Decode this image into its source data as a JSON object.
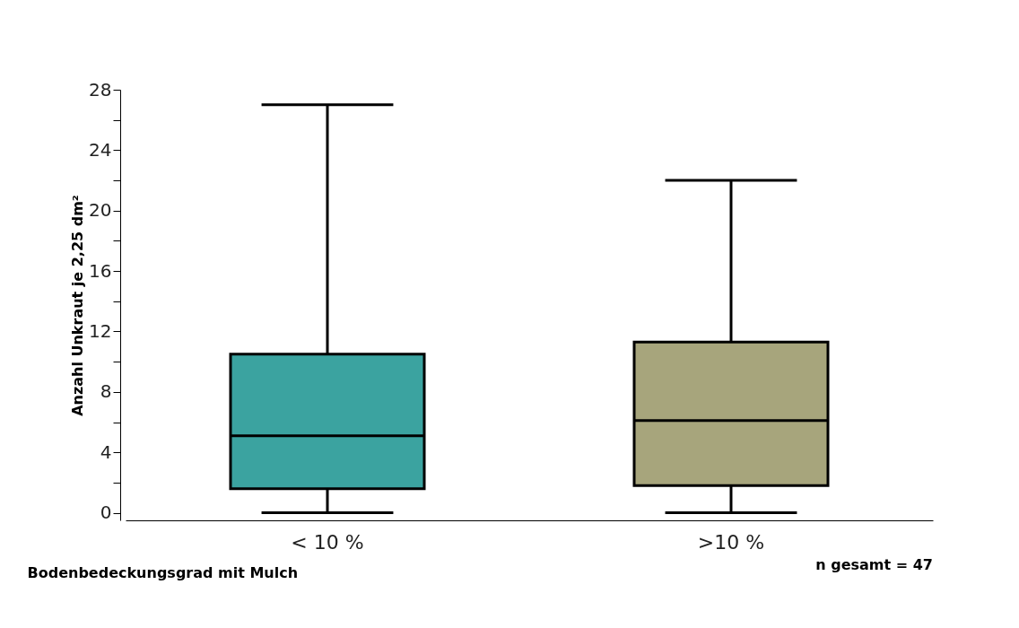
{
  "chart_data": {
    "type": "box",
    "categories": [
      "< 10 %",
      ">10 %"
    ],
    "colors": [
      "#3ba3a0",
      "#a7a57c"
    ],
    "boxes": [
      {
        "low": 0,
        "q1": 1.6,
        "median": 5.1,
        "q3": 10.5,
        "high": 27
      },
      {
        "low": 0,
        "q1": 1.8,
        "median": 6.1,
        "q3": 11.3,
        "high": 22
      }
    ],
    "ylabel": "Anzahl Unkraut je 2,25 dm²",
    "xlabel": "Bodenbedeckungsgrad mit Mulch",
    "annotations": [
      "n gesamt = 47"
    ],
    "ylim": [
      -0.5,
      28
    ],
    "yticks": [
      0,
      {
        "value": 2,
        "label": null
      },
      4,
      {
        "value": 6,
        "label": null
      },
      8,
      {
        "value": 10,
        "label": null
      },
      12,
      {
        "value": 14,
        "label": null
      },
      16,
      {
        "value": 18,
        "label": null
      },
      20,
      {
        "value": 22,
        "label": null
      },
      24,
      {
        "value": 26,
        "label": null
      },
      28
    ]
  }
}
